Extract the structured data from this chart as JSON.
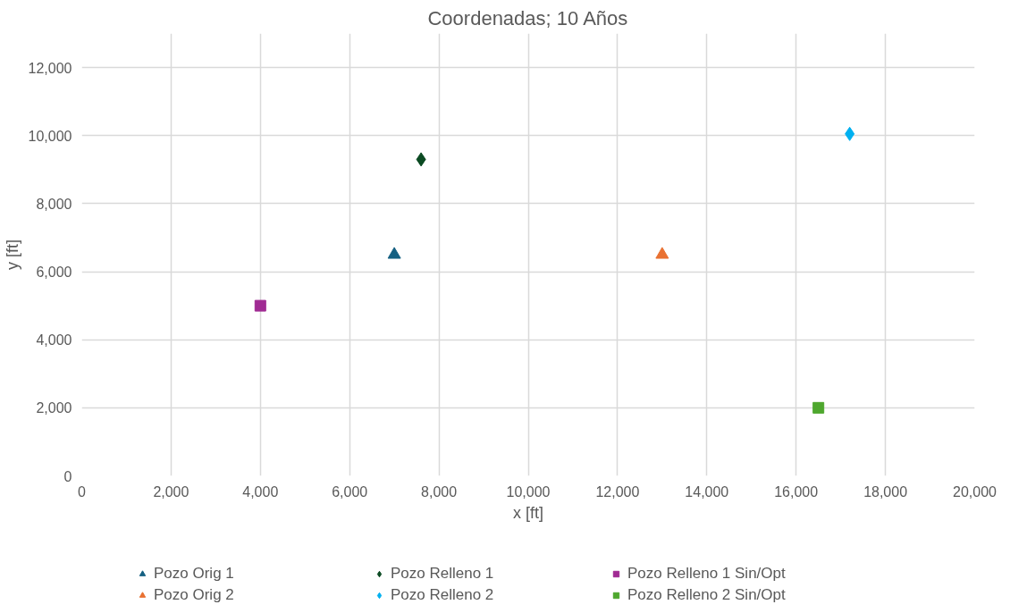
{
  "chart_data": {
    "type": "scatter",
    "title": "Coordenadas; 10 Años",
    "xlabel": "x [ft]",
    "ylabel": "y [ft]",
    "xlim": [
      0,
      20000
    ],
    "xticks": [
      {
        "value": 0,
        "label": "0"
      },
      {
        "value": 2000,
        "label": "2,000"
      },
      {
        "value": 4000,
        "label": "4,000"
      },
      {
        "value": 6000,
        "label": "6,000"
      },
      {
        "value": 8000,
        "label": "8,000"
      },
      {
        "value": 10000,
        "label": "10,000"
      },
      {
        "value": 12000,
        "label": "12,000"
      },
      {
        "value": 14000,
        "label": "14,000"
      },
      {
        "value": 16000,
        "label": "16,000"
      },
      {
        "value": 18000,
        "label": "18,000"
      },
      {
        "value": 20000,
        "label": "20,000"
      }
    ],
    "ylim": [
      0,
      13000
    ],
    "yticks": [
      {
        "value": 0,
        "label": "0"
      },
      {
        "value": 2000,
        "label": "2,000"
      },
      {
        "value": 4000,
        "label": "4,000"
      },
      {
        "value": 6000,
        "label": "6,000"
      },
      {
        "value": 8000,
        "label": "8,000"
      },
      {
        "value": 10000,
        "label": "10,000"
      },
      {
        "value": 12000,
        "label": "12,000"
      }
    ],
    "grid": true,
    "legend": "bottom",
    "series": [
      {
        "name": "Pozo Orig 1",
        "color": "#156082",
        "marker": "triangle",
        "x": [
          7000
        ],
        "values": [
          6500
        ]
      },
      {
        "name": "Pozo Relleno 1",
        "color": "#0b4a22",
        "marker": "diamond",
        "x": [
          7600
        ],
        "values": [
          9300
        ]
      },
      {
        "name": "Pozo Relleno 1 Sin/Opt",
        "color": "#a02b93",
        "marker": "square",
        "x": [
          4000
        ],
        "values": [
          5000
        ]
      },
      {
        "name": "Pozo Orig 2",
        "color": "#e97132",
        "marker": "triangle",
        "x": [
          13000
        ],
        "values": [
          6500
        ]
      },
      {
        "name": "Pozo Relleno 2",
        "color": "#00b0f0",
        "marker": "diamond",
        "x": [
          17200
        ],
        "values": [
          10050
        ]
      },
      {
        "name": "Pozo Relleno 2 Sin/Opt",
        "color": "#4ea72e",
        "marker": "square",
        "x": [
          16500
        ],
        "values": [
          2000
        ]
      }
    ]
  }
}
